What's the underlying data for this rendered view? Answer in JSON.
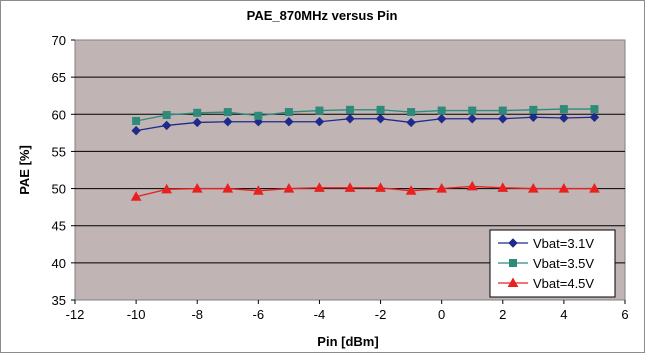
{
  "chart_data": {
    "type": "line",
    "title": "PAE_870MHz versus Pin",
    "xlabel": "Pin [dBm]",
    "ylabel": "PAE [%]",
    "xlim": [
      -12,
      6
    ],
    "ylim": [
      35,
      70
    ],
    "xticks": [
      -12,
      -10,
      -8,
      -6,
      -4,
      -2,
      0,
      2,
      4,
      6
    ],
    "yticks": [
      35,
      40,
      45,
      50,
      55,
      60,
      65,
      70
    ],
    "x": [
      -10,
      -9,
      -8,
      -7,
      -6,
      -5,
      -4,
      -3,
      -2,
      -1,
      0,
      1,
      2,
      3,
      4,
      5
    ],
    "grid": "horizontal",
    "legend_position": "bottom-right",
    "plot_background": "#c0b4b4",
    "series": [
      {
        "name": "Vbat=3.1V",
        "marker": "diamond",
        "color": "#1f2a8c",
        "values": [
          57.8,
          58.5,
          58.9,
          59.0,
          59.0,
          59.0,
          59.0,
          59.4,
          59.4,
          58.9,
          59.4,
          59.4,
          59.4,
          59.6,
          59.5,
          59.6
        ]
      },
      {
        "name": "Vbat=3.5V",
        "marker": "square",
        "color": "#2e8b7a",
        "values": [
          59.1,
          59.9,
          60.2,
          60.3,
          59.8,
          60.3,
          60.5,
          60.6,
          60.6,
          60.3,
          60.5,
          60.5,
          60.5,
          60.6,
          60.7,
          60.7
        ]
      },
      {
        "name": "Vbat=4.5V",
        "marker": "triangle",
        "color": "#e8201f",
        "values": [
          48.9,
          49.9,
          50.0,
          50.0,
          49.7,
          50.0,
          50.1,
          50.1,
          50.1,
          49.7,
          50.0,
          50.3,
          50.1,
          50.0,
          50.0,
          50.0
        ]
      }
    ]
  }
}
